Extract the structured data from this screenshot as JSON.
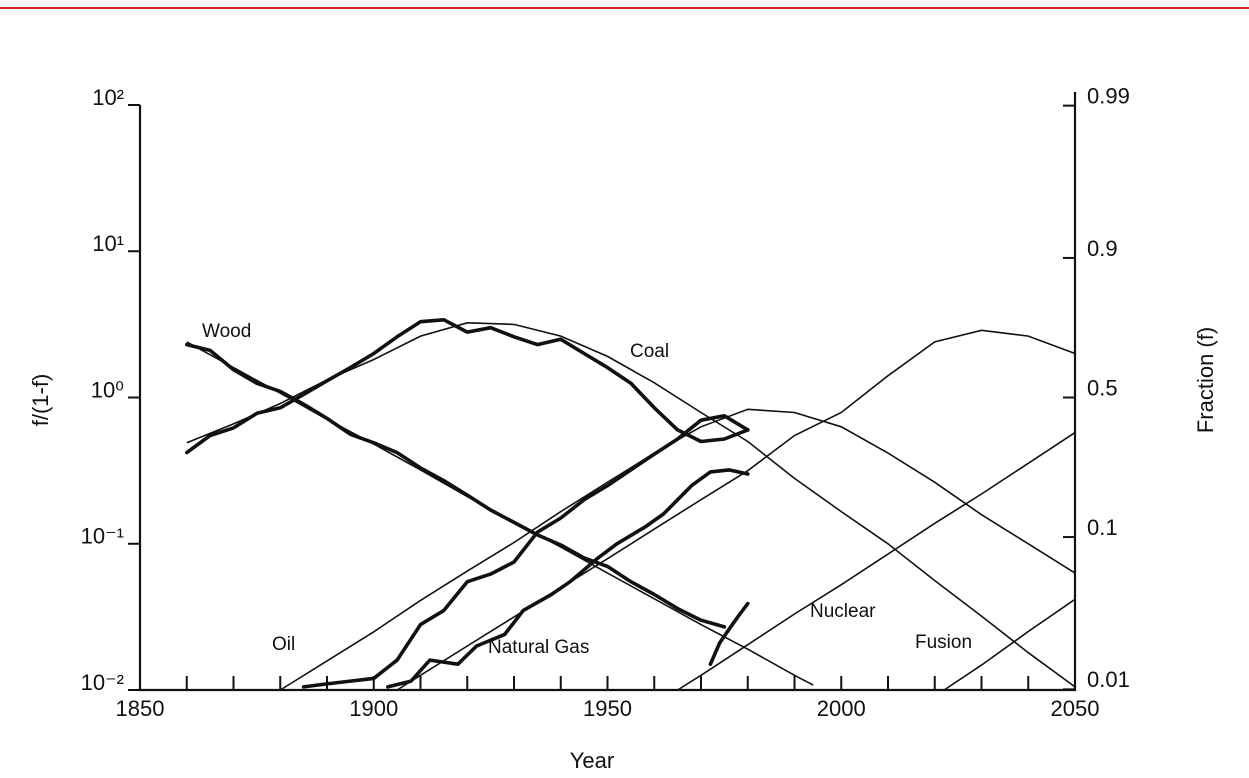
{
  "chart_data": {
    "type": "line",
    "xlabel": "Year",
    "ylabel": "f/(1-f)",
    "y2label": "Fraction (f)",
    "xlim": [
      1850,
      2050
    ],
    "xticks": [
      1850,
      1900,
      1950,
      2000,
      2050
    ],
    "xminor": [
      1860,
      1870,
      1880,
      1890,
      1910,
      1920,
      1930,
      1940,
      1960,
      1970,
      1980,
      1990,
      2010,
      2020,
      2030,
      2040
    ],
    "ylim": [
      0.01,
      100
    ],
    "yscale": "log",
    "yticks": [
      {
        "value": 0.01,
        "label": "10⁻²"
      },
      {
        "value": 0.1,
        "label": "10⁻¹"
      },
      {
        "value": 1,
        "label": "10⁰"
      },
      {
        "value": 10,
        "label": "10¹"
      },
      {
        "value": 100,
        "label": "10²"
      }
    ],
    "y2lim": [
      0.0099,
      0.9901
    ],
    "y2scale": "logit",
    "y2ticks": [
      0.01,
      0.1,
      0.5,
      0.9,
      0.99
    ],
    "series": [
      {
        "name": "Wood",
        "color": "#111111",
        "x": [
          1860,
          1870,
          1880,
          1890,
          1900,
          1910,
          1920,
          1930,
          1940,
          1950,
          1960,
          1970,
          1980,
          1990,
          1994
        ],
        "values": [
          2.4,
          1.6,
          1.07,
          0.71,
          0.48,
          0.32,
          0.21,
          0.14,
          0.095,
          0.063,
          0.042,
          0.028,
          0.019,
          0.0126,
          0.0108
        ]
      },
      {
        "name": "Coal",
        "color": "#111111",
        "x": [
          1860,
          1870,
          1880,
          1890,
          1900,
          1910,
          1920,
          1930,
          1940,
          1950,
          1960,
          1970,
          1980,
          1990,
          2000,
          2010,
          2020,
          2030,
          2040,
          2050
        ],
        "values": [
          0.49,
          0.66,
          0.91,
          1.32,
          1.82,
          2.63,
          3.24,
          3.16,
          2.63,
          1.91,
          1.26,
          0.79,
          0.5,
          0.28,
          0.166,
          0.1,
          0.056,
          0.032,
          0.018,
          0.0105
        ]
      },
      {
        "name": "Oil",
        "color": "#111111",
        "x": [
          1880,
          1890,
          1900,
          1910,
          1920,
          1930,
          1940,
          1950,
          1960,
          1970,
          1980,
          1990,
          2000,
          2010,
          2020,
          2030,
          2040,
          2050
        ],
        "values": [
          0.01,
          0.0158,
          0.025,
          0.041,
          0.065,
          0.102,
          0.166,
          0.263,
          0.417,
          0.63,
          0.83,
          0.79,
          0.63,
          0.417,
          0.263,
          0.158,
          0.1,
          0.063
        ]
      },
      {
        "name": "Natural Gas",
        "color": "#111111",
        "x": [
          1905,
          1910,
          1920,
          1930,
          1940,
          1950,
          1960,
          1970,
          1980,
          1990,
          2000,
          2010,
          2020,
          2030,
          2040,
          2050
        ],
        "values": [
          0.01,
          0.0126,
          0.02,
          0.0316,
          0.05,
          0.079,
          0.126,
          0.2,
          0.316,
          0.55,
          0.79,
          1.41,
          2.4,
          2.88,
          2.63,
          2.0
        ]
      },
      {
        "name": "Nuclear",
        "color": "#111111",
        "x": [
          1965,
          1970,
          1980,
          1990,
          2000,
          2010,
          2020,
          2030,
          2040,
          2050
        ],
        "values": [
          0.01,
          0.0126,
          0.0204,
          0.0331,
          0.0525,
          0.085,
          0.138,
          0.219,
          0.355,
          0.575
        ]
      },
      {
        "name": "Fusion",
        "color": "#111111",
        "x": [
          2022,
          2030,
          2040,
          2050
        ],
        "values": [
          0.01,
          0.0148,
          0.0251,
          0.0417
        ]
      },
      {
        "color": "#111111",
        "observed": true,
        "x": [
          1860,
          1865,
          1870,
          1875,
          1880,
          1885,
          1890,
          1895,
          1900,
          1905,
          1910,
          1915,
          1920,
          1925,
          1930,
          1935,
          1940,
          1945,
          1950,
          1955,
          1960,
          1965,
          1970,
          1975
        ],
        "values": [
          2.3,
          2.1,
          1.55,
          1.25,
          1.1,
          0.9,
          0.72,
          0.56,
          0.49,
          0.42,
          0.33,
          0.27,
          0.215,
          0.17,
          0.14,
          0.115,
          0.098,
          0.08,
          0.07,
          0.055,
          0.045,
          0.036,
          0.03,
          0.027
        ]
      },
      {
        "color": "#111111",
        "observed": true,
        "x": [
          1860,
          1865,
          1870,
          1875,
          1880,
          1885,
          1890,
          1895,
          1900,
          1905,
          1910,
          1915,
          1920,
          1925,
          1930,
          1935,
          1940,
          1945,
          1950,
          1955,
          1960,
          1965,
          1970,
          1975,
          1980
        ],
        "values": [
          0.42,
          0.55,
          0.62,
          0.78,
          0.85,
          1.05,
          1.3,
          1.6,
          2.0,
          2.6,
          3.3,
          3.4,
          2.8,
          3.0,
          2.6,
          2.3,
          2.5,
          2.0,
          1.6,
          1.25,
          0.85,
          0.6,
          0.5,
          0.52,
          0.6
        ]
      },
      {
        "color": "#111111",
        "observed": true,
        "x": [
          1885,
          1890,
          1895,
          1900,
          1905,
          1910,
          1915,
          1920,
          1925,
          1930,
          1935,
          1940,
          1945,
          1950,
          1955,
          1960,
          1965,
          1970,
          1975,
          1980
        ],
        "values": [
          0.0105,
          0.011,
          0.0115,
          0.012,
          0.016,
          0.028,
          0.035,
          0.055,
          0.062,
          0.075,
          0.12,
          0.15,
          0.2,
          0.25,
          0.32,
          0.41,
          0.52,
          0.7,
          0.75,
          0.6
        ]
      },
      {
        "color": "#111111",
        "observed": true,
        "x": [
          1903,
          1908,
          1912,
          1918,
          1922,
          1928,
          1932,
          1938,
          1942,
          1948,
          1952,
          1958,
          1962,
          1968,
          1972,
          1976,
          1980
        ],
        "values": [
          0.0105,
          0.0115,
          0.016,
          0.015,
          0.02,
          0.024,
          0.035,
          0.045,
          0.055,
          0.08,
          0.1,
          0.13,
          0.16,
          0.25,
          0.31,
          0.32,
          0.3
        ]
      },
      {
        "color": "#111111",
        "observed": true,
        "x": [
          1972,
          1974,
          1976,
          1978,
          1980
        ],
        "values": [
          0.015,
          0.021,
          0.026,
          0.032,
          0.039
        ]
      }
    ]
  }
}
